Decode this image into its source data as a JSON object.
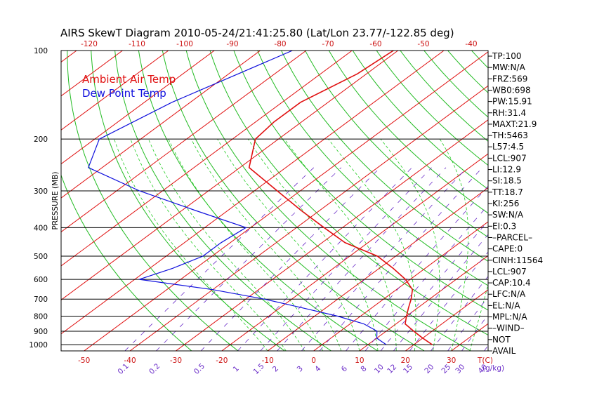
{
  "title": "AIRS SkewT Diagram 2010-05-24/21:41:25.80 (Lat/Lon 23.77/-122.85 deg)",
  "colors": {
    "frame": "#000000",
    "isotherm": "#e01010",
    "dry_adiabat": "#22bb22",
    "moist_adiabat": "#22cc22",
    "mixing_ratio": "#6a2cc8",
    "temperature": "#e01010",
    "dewpoint": "#1010dd",
    "bottom_ticks": "#cc1010",
    "mixing_labels": "#6a2cc8"
  },
  "chart_data": {
    "type": "line",
    "title": "AIRS SkewT Diagram 2010-05-24/21:41:25.80 (Lat/Lon 23.77/-122.85 deg)",
    "ylabel": "PRESSURE (MB)",
    "xlabel": "T(C)",
    "y_scale": "log",
    "ylim": [
      1050,
      100
    ],
    "xlim_at_surface": [
      -55,
      38
    ],
    "pressure_ticks": [
      100,
      200,
      300,
      400,
      500,
      600,
      700,
      800,
      900,
      1000
    ],
    "bottom_temperature_ticks": [
      -50,
      -40,
      -30,
      -20,
      -10,
      0,
      10,
      20,
      30
    ],
    "bottom_axis_unit": "T(C)",
    "top_temperature_ticks": [
      -120,
      -110,
      -100,
      -90,
      -80,
      -70,
      -60,
      -50,
      -40
    ],
    "mixing_ratio_ticks": [
      "0.1",
      "0.2",
      "0.5",
      "1",
      "1.5",
      "2",
      "3",
      "4",
      "6",
      "8",
      "10",
      "12",
      "15",
      "20",
      "25",
      "30",
      "40"
    ],
    "mixing_ratio_unit": "(g/kg)",
    "legend": [
      {
        "label": "Ambient Air Temp",
        "color": "#e01010"
      },
      {
        "label": "Dew Point Temp",
        "color": "#1010dd"
      }
    ],
    "series": [
      {
        "name": "Ambient Air Temp",
        "pressure": [
          100,
          120,
          150,
          175,
          200,
          250,
          300,
          350,
          400,
          450,
          500,
          550,
          600,
          650,
          700,
          750,
          800,
          850,
          900,
          950,
          1000
        ],
        "temperature": [
          -71,
          -72,
          -76,
          -76,
          -75,
          -68,
          -55,
          -44,
          -34,
          -25,
          -14,
          -7,
          -1,
          3.5,
          6,
          8,
          10,
          12,
          16,
          20,
          24
        ]
      },
      {
        "name": "Dew Point Temp",
        "pressure": [
          100,
          150,
          200,
          250,
          300,
          350,
          400,
          450,
          500,
          550,
          600,
          650,
          700,
          750,
          800,
          850,
          900,
          950,
          975,
          1000
        ],
        "temperature": [
          -93,
          -104,
          -109,
          -103,
          -85,
          -67,
          -51,
          -52,
          -52,
          -55,
          -59,
          -40,
          -26,
          -15,
          -5,
          3,
          8,
          10,
          12,
          14
        ]
      }
    ]
  },
  "indices": [
    "TP:100",
    "MW:N/A",
    "FRZ:569",
    "WB0:698",
    "PW:15.91",
    "RH:31.4",
    "MAXT:21.9",
    "TH:5463",
    "L57:4.5",
    "LCL:907",
    "LI:12.9",
    "SI:18.5",
    "TT:18.7",
    "KI:256",
    "SW:N/A",
    "EI:0.3",
    "–PARCEL–",
    "CAPE:0",
    "CINH:11564",
    "LCL:907",
    "CAP:10.4",
    "LFC:N/A",
    "EL:N/A",
    "MPL:N/A",
    "–WIND–",
    " NOT",
    " AVAIL"
  ]
}
